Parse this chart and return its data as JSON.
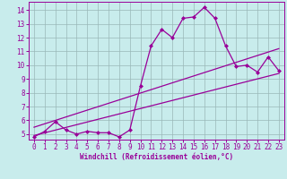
{
  "xlabel": "Windchill (Refroidissement éolien,°C)",
  "bg_color": "#c8ecec",
  "line_color": "#990099",
  "grid_color": "#9ab8b8",
  "xlim": [
    -0.5,
    23.5
  ],
  "ylim": [
    4.6,
    14.6
  ],
  "xticks": [
    0,
    1,
    2,
    3,
    4,
    5,
    6,
    7,
    8,
    9,
    10,
    11,
    12,
    13,
    14,
    15,
    16,
    17,
    18,
    19,
    20,
    21,
    22,
    23
  ],
  "yticks": [
    5,
    6,
    7,
    8,
    9,
    10,
    11,
    12,
    13,
    14
  ],
  "line1_x": [
    0,
    1,
    2,
    3,
    4,
    5,
    6,
    7,
    8,
    9,
    10,
    11,
    12,
    13,
    14,
    15,
    16,
    17,
    18,
    19,
    20,
    21,
    22,
    23
  ],
  "line1_y": [
    4.8,
    5.2,
    5.9,
    5.3,
    5.0,
    5.2,
    5.1,
    5.1,
    4.8,
    5.3,
    8.5,
    11.4,
    12.6,
    12.0,
    13.4,
    13.5,
    14.2,
    13.4,
    11.4,
    9.9,
    10.0,
    9.5,
    10.6,
    9.6
  ],
  "line2_x": [
    0,
    23
  ],
  "line2_y": [
    4.9,
    9.4
  ],
  "line3_x": [
    0,
    23
  ],
  "line3_y": [
    5.5,
    11.2
  ],
  "marker": "D",
  "markersize": 2.0,
  "linewidth": 0.9,
  "tick_fontsize": 5.5,
  "xlabel_fontsize": 5.5
}
